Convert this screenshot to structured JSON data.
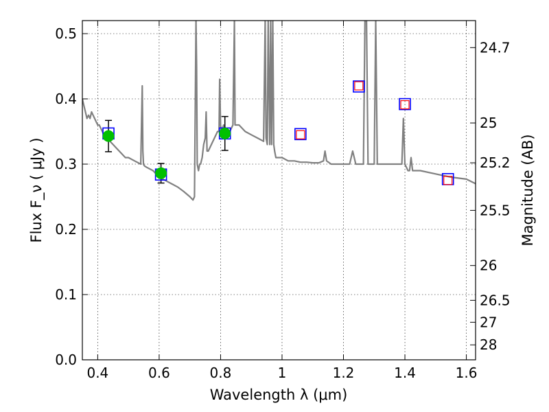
{
  "chart_data": {
    "type": "line",
    "xlabel": "Wavelength  λ (μm)",
    "ylabel": "Flux  F_ν  ( μJy )",
    "ylabel_right": "Magnitude (AB)",
    "xlim": [
      0.35,
      1.63
    ],
    "ylim": [
      0.0,
      0.52
    ],
    "grid": true,
    "x_ticks": [
      {
        "value": 0.4,
        "label": "0.4"
      },
      {
        "value": 0.6,
        "label": "0.6"
      },
      {
        "value": 0.8,
        "label": "0.8"
      },
      {
        "value": 1.0,
        "label": "1"
      },
      {
        "value": 1.2,
        "label": "1.2"
      },
      {
        "value": 1.4,
        "label": "1.4"
      },
      {
        "value": 1.6,
        "label": "1.6"
      }
    ],
    "y_ticks": [
      {
        "value": 0.0,
        "label": "0.0"
      },
      {
        "value": 0.1,
        "label": "0.1"
      },
      {
        "value": 0.2,
        "label": "0.2"
      },
      {
        "value": 0.3,
        "label": "0.3"
      },
      {
        "value": 0.4,
        "label": "0.4"
      },
      {
        "value": 0.5,
        "label": "0.5"
      }
    ],
    "mag_ticks": [
      {
        "value": 24.7,
        "label": "24.7"
      },
      {
        "value": 25,
        "label": "25"
      },
      {
        "value": 25.2,
        "label": "25.2"
      },
      {
        "value": 25.5,
        "label": "25.5"
      },
      {
        "value": 26,
        "label": "26"
      },
      {
        "value": 26.5,
        "label": "26.5"
      },
      {
        "value": 27,
        "label": "27"
      },
      {
        "value": 28,
        "label": "28"
      }
    ],
    "series": [
      {
        "kind": "template-spectrum",
        "color": "#808080",
        "x": [
          0.35,
          0.355,
          0.36,
          0.365,
          0.37,
          0.375,
          0.38,
          0.385,
          0.39,
          0.395,
          0.4,
          0.405,
          0.41,
          0.415,
          0.42,
          0.43,
          0.44,
          0.45,
          0.46,
          0.47,
          0.48,
          0.49,
          0.5,
          0.52,
          0.54,
          0.545,
          0.547,
          0.549,
          0.551,
          0.553,
          0.56,
          0.58,
          0.6,
          0.62,
          0.64,
          0.66,
          0.68,
          0.7,
          0.71,
          0.715,
          0.72,
          0.722,
          0.724,
          0.728,
          0.732,
          0.735,
          0.74,
          0.745,
          0.75,
          0.753,
          0.756,
          0.76,
          0.77,
          0.78,
          0.79,
          0.795,
          0.797,
          0.8,
          0.803,
          0.81,
          0.82,
          0.83,
          0.84,
          0.845,
          0.847,
          0.85,
          0.86,
          0.88,
          0.9,
          0.92,
          0.94,
          0.945,
          0.948,
          0.952,
          0.955,
          0.96,
          0.963,
          0.966,
          0.97,
          0.973,
          0.976,
          0.98,
          0.99,
          1.0,
          1.02,
          1.04,
          1.06,
          1.08,
          1.1,
          1.12,
          1.135,
          1.14,
          1.145,
          1.16,
          1.18,
          1.2,
          1.22,
          1.23,
          1.235,
          1.24,
          1.25,
          1.26,
          1.265,
          1.27,
          1.275,
          1.28,
          1.29,
          1.3,
          1.305,
          1.31,
          1.32,
          1.34,
          1.36,
          1.38,
          1.39,
          1.395,
          1.4,
          1.41,
          1.415,
          1.42,
          1.425,
          1.43,
          1.45,
          1.5,
          1.55,
          1.6,
          1.63
        ],
        "y": [
          0.4,
          0.39,
          0.38,
          0.37,
          0.375,
          0.37,
          0.38,
          0.375,
          0.37,
          0.365,
          0.36,
          0.36,
          0.355,
          0.35,
          0.345,
          0.34,
          0.335,
          0.33,
          0.325,
          0.32,
          0.315,
          0.31,
          0.31,
          0.305,
          0.3,
          0.42,
          0.32,
          0.3,
          0.298,
          0.297,
          0.295,
          0.29,
          0.28,
          0.275,
          0.27,
          0.265,
          0.258,
          0.25,
          0.245,
          0.25,
          0.52,
          0.45,
          0.3,
          0.29,
          0.3,
          0.3,
          0.31,
          0.33,
          0.34,
          0.38,
          0.32,
          0.32,
          0.33,
          0.34,
          0.35,
          0.35,
          0.43,
          0.36,
          0.35,
          0.36,
          0.35,
          0.35,
          0.36,
          0.52,
          0.36,
          0.36,
          0.36,
          0.35,
          0.345,
          0.34,
          0.335,
          0.52,
          0.34,
          0.33,
          0.52,
          0.33,
          0.52,
          0.33,
          0.52,
          0.33,
          0.32,
          0.31,
          0.31,
          0.31,
          0.305,
          0.305,
          0.303,
          0.303,
          0.302,
          0.302,
          0.305,
          0.32,
          0.305,
          0.3,
          0.3,
          0.3,
          0.3,
          0.32,
          0.31,
          0.3,
          0.3,
          0.3,
          0.3,
          0.52,
          0.52,
          0.3,
          0.3,
          0.3,
          0.52,
          0.3,
          0.3,
          0.3,
          0.3,
          0.3,
          0.3,
          0.37,
          0.3,
          0.29,
          0.29,
          0.31,
          0.29,
          0.29,
          0.29,
          0.285,
          0.28,
          0.277,
          0.27
        ]
      },
      {
        "kind": "observed-photometry",
        "marker": "filled-circle",
        "color": "#00c000",
        "points": [
          {
            "x": 0.435,
            "y": 0.343,
            "err": 0.024
          },
          {
            "x": 0.606,
            "y": 0.286,
            "err": 0.015
          },
          {
            "x": 0.814,
            "y": 0.347,
            "err": 0.026
          }
        ]
      },
      {
        "kind": "template-photometry",
        "marker": "open-square",
        "color": "#0000ff",
        "x": [
          0.435,
          0.606,
          0.814,
          1.06,
          1.25,
          1.4,
          1.54
        ],
        "y": [
          0.347,
          0.284,
          0.347,
          0.346,
          0.419,
          0.392,
          0.277
        ]
      },
      {
        "kind": "predicted-photometry",
        "marker": "open-square",
        "color": "#ff0000",
        "x": [
          1.06,
          1.25,
          1.4,
          1.54
        ],
        "y": [
          0.345,
          0.42,
          0.391,
          0.275
        ]
      }
    ]
  }
}
